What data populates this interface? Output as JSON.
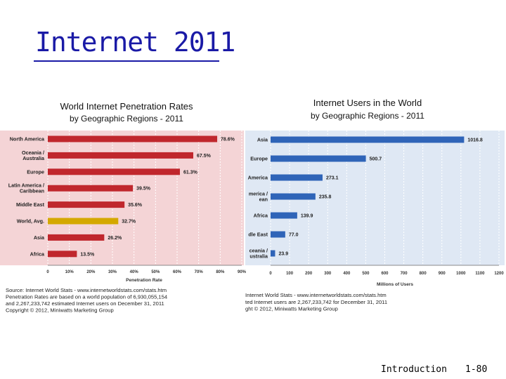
{
  "slide": {
    "title": "Internet 2011",
    "footer_topic": "Introduction",
    "footer_page": "1-80"
  },
  "chart_data": [
    {
      "type": "bar",
      "orientation": "horizontal",
      "title": "World Internet Penetration Rates",
      "subtitle": "by Geographic Regions - 2011",
      "xlabel": "Penetration Rate",
      "categories": [
        "North America",
        "Oceania / Australia",
        "Europe",
        "Latin America / Caribbean",
        "Middle East",
        "World, Avg.",
        "Asia",
        "Africa"
      ],
      "values": [
        78.6,
        67.5,
        61.3,
        39.5,
        35.6,
        32.7,
        26.2,
        13.5
      ],
      "value_labels": [
        "78.6%",
        "67.5%",
        "61.3%",
        "39.5%",
        "35.6%",
        "32.7%",
        "26.2%",
        "13.5%"
      ],
      "highlight_category": "World, Avg.",
      "xlim": [
        0,
        90
      ],
      "x_ticks": [
        "0",
        "10%",
        "20%",
        "30%",
        "40%",
        "50%",
        "60%",
        "70%",
        "80%",
        "90%"
      ],
      "grid": true,
      "colors": {
        "bar": "#c0272d",
        "highlight": "#d4a800",
        "plot_bg": "#f4d4d6"
      },
      "source_lines": [
        "Source: Internet World Stats - www.internetworldstats.com/stats.htm",
        "Penetration Rates are based on a world population of 6,930,055,154",
        "and 2,267,233,742 estimated Internet users on December 31, 2011",
        "Copyright © 2012, Miniwatts Marketing Group"
      ]
    },
    {
      "type": "bar",
      "orientation": "horizontal",
      "title": "Internet Users in the World",
      "subtitle": "by Geographic Regions - 2011",
      "xlabel": "Millions of Users",
      "categories": [
        "Asia",
        "Europe",
        "America",
        "merica / ean",
        "Africa",
        "dle East",
        "ceania / ustralia"
      ],
      "values": [
        1016.8,
        500.7,
        273.1,
        235.8,
        139.9,
        77.0,
        23.9
      ],
      "value_labels": [
        "1016.8",
        "500.7",
        "273.1",
        "235.8",
        "139.9",
        "77.0",
        "23.9"
      ],
      "xlim": [
        0,
        1200
      ],
      "x_ticks": [
        "0",
        "100",
        "200",
        "300",
        "400",
        "500",
        "600",
        "700",
        "800",
        "900",
        "1000",
        "1100",
        "1200"
      ],
      "grid": true,
      "colors": {
        "bar": "#2f64b8",
        "plot_bg": "#dfe8f4"
      },
      "source_lines": [
        "Internet World Stats - www.internetworldstats.com/stats.htm",
        "ted Internet users are 2,267,233,742 for December 31, 2011",
        "ght © 2012, Miniwatts Marketing Group"
      ]
    }
  ]
}
